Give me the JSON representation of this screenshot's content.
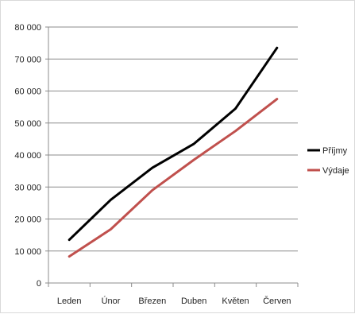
{
  "chart_data": {
    "type": "line",
    "categories": [
      "Leden",
      "Únor",
      "Březen",
      "Duben",
      "Květen",
      "Červen"
    ],
    "series": [
      {
        "name": "Příjmy",
        "color": "#000000",
        "values": [
          13500,
          26000,
          36000,
          43500,
          54500,
          73500
        ]
      },
      {
        "name": "Výdaje",
        "color": "#c0504d",
        "values": [
          8300,
          16800,
          29000,
          38500,
          47500,
          57500
        ]
      }
    ],
    "yticks": [
      "0",
      "10 000",
      "20 000",
      "30 000",
      "40 000",
      "50 000",
      "60 000",
      "70 000",
      "80 000"
    ],
    "ylim": [
      0,
      80000
    ],
    "grid": true,
    "legend_position": "right"
  }
}
